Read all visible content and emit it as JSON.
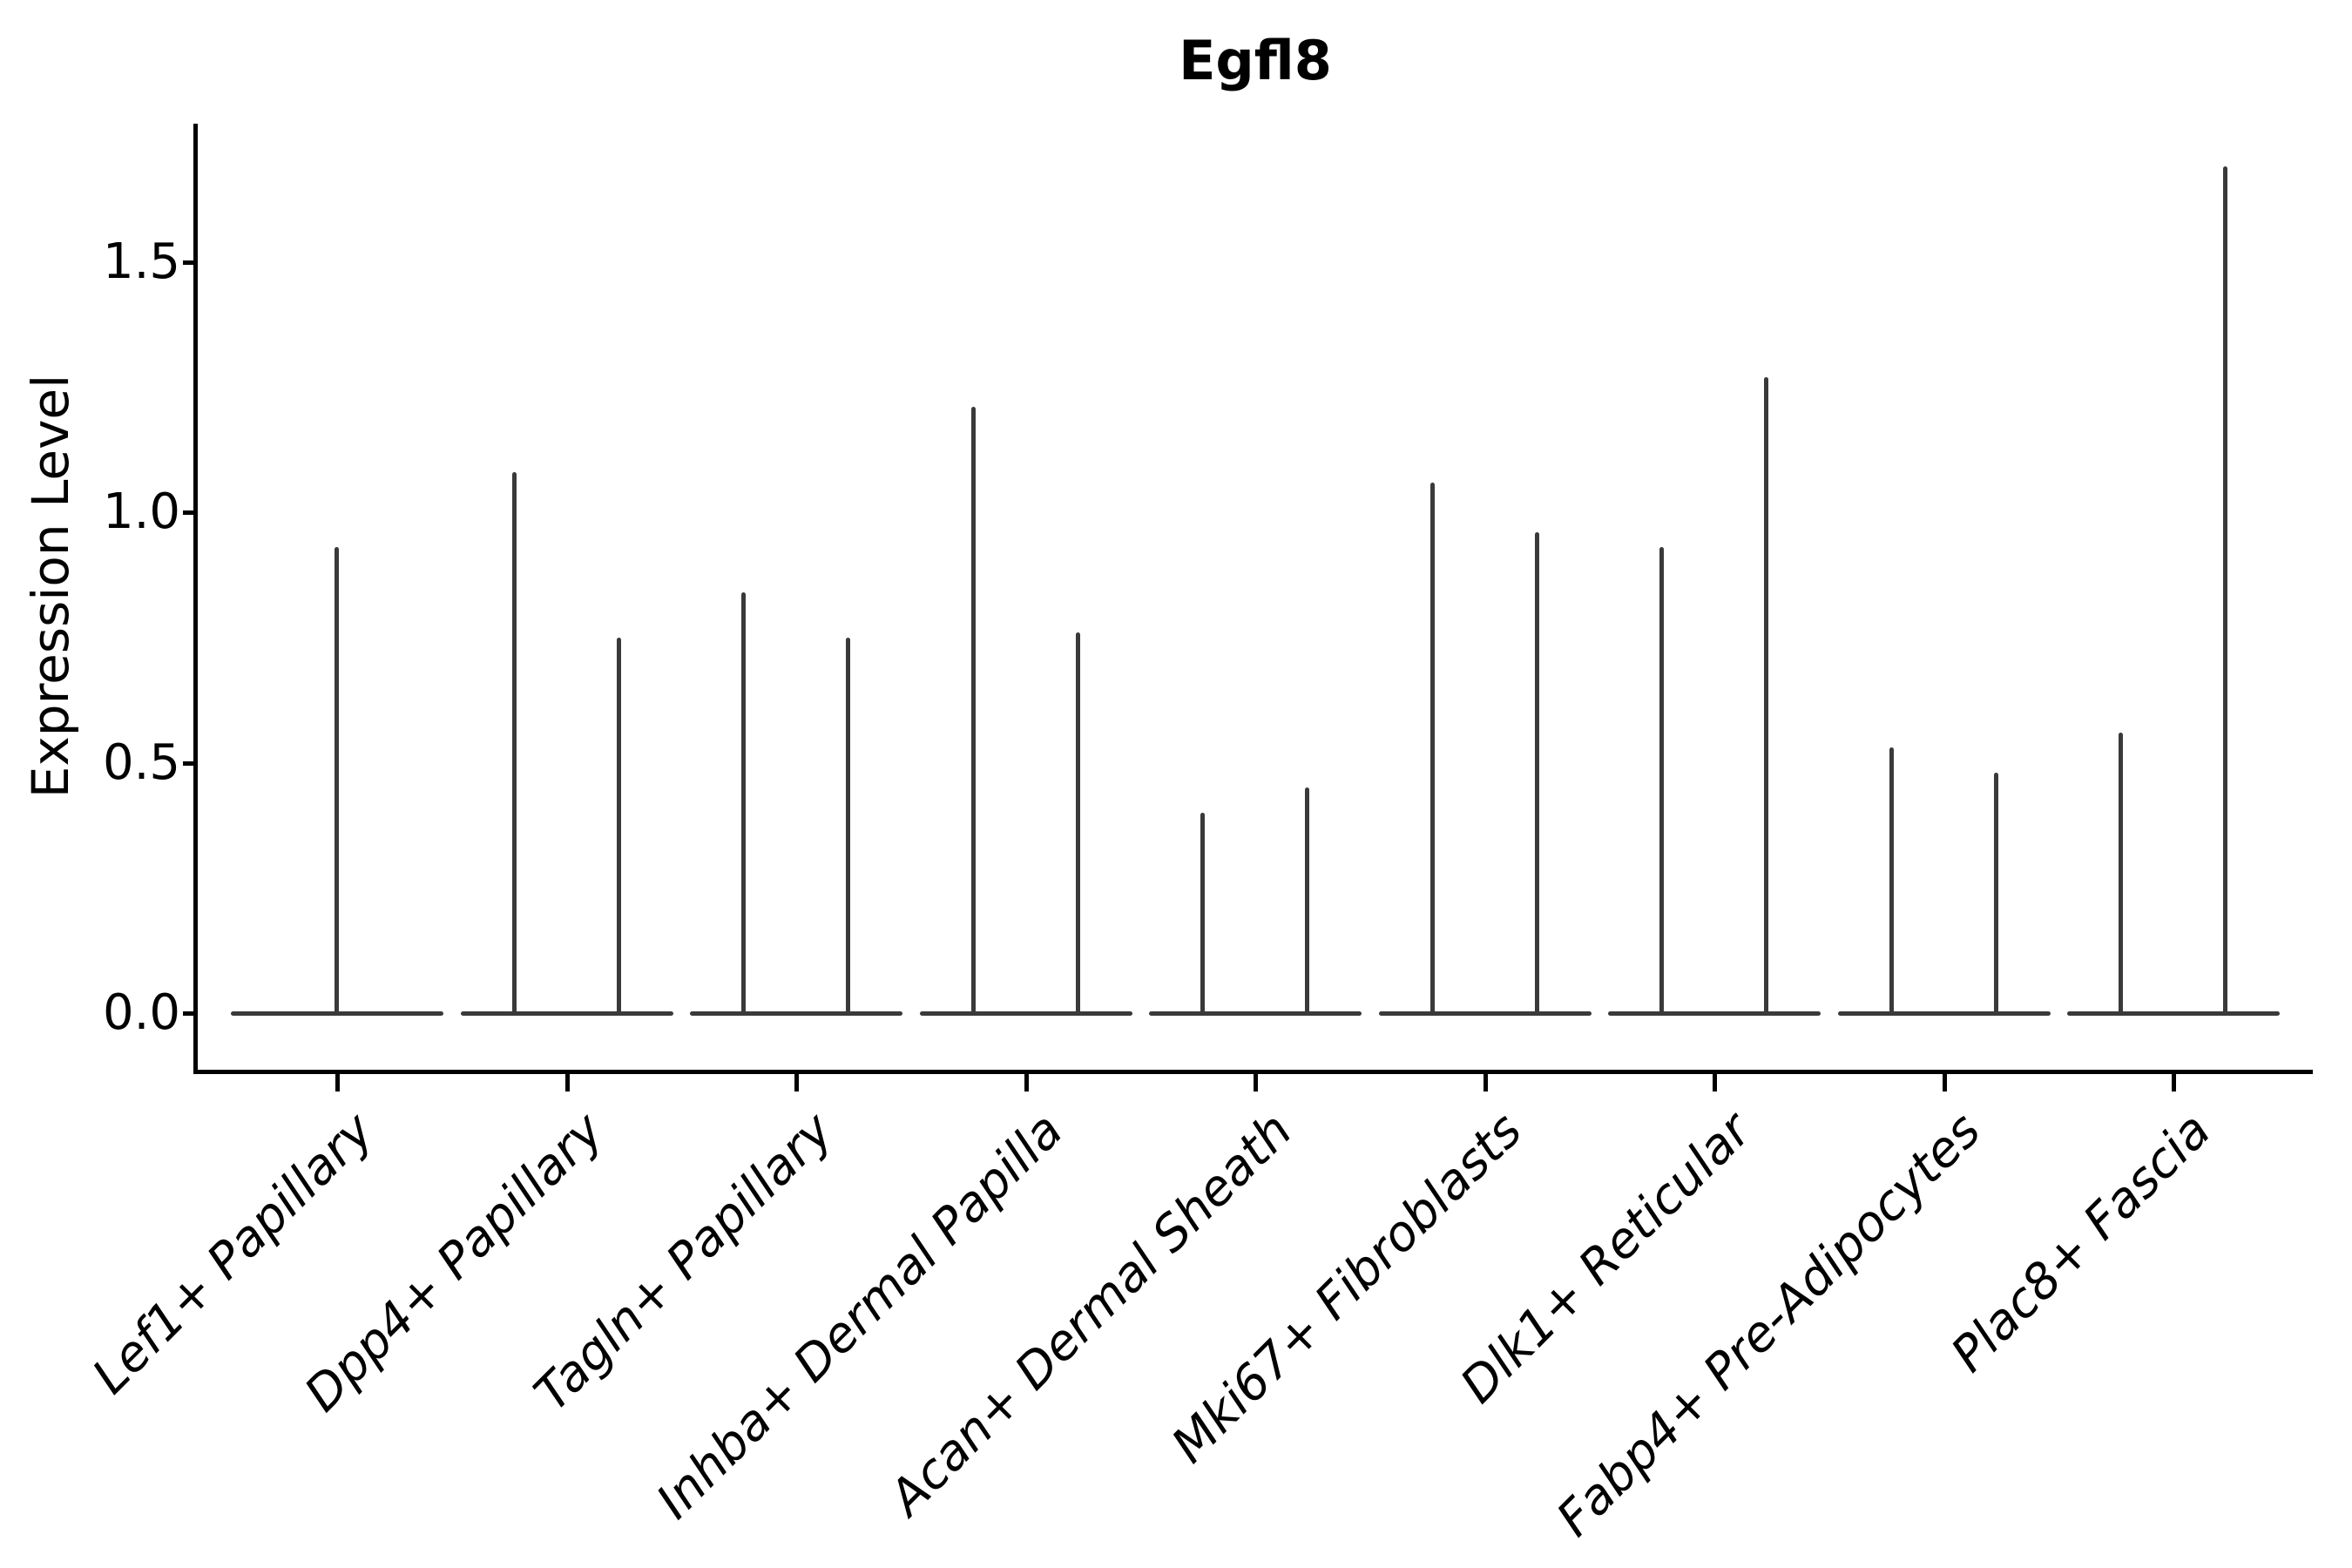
{
  "figure": {
    "background": "#ffffff",
    "colors": {
      "violin_line": "#3a3a3a",
      "axis_line": "#000000",
      "text": "#000000"
    }
  },
  "chart_data": {
    "type": "violin",
    "title": "Egfl8",
    "xlabel": "",
    "ylabel": "Expression Level",
    "grid": false,
    "legend": "none",
    "ylim": [
      -0.11,
      1.78
    ],
    "yticks": [
      {
        "label": "1.5",
        "value": 1.5
      },
      {
        "label": "1.0",
        "value": 1.0
      },
      {
        "label": "0.5",
        "value": 0.5
      },
      {
        "label": "0.0",
        "value": 0.0
      }
    ],
    "categories": [
      "Lef1+ Papillary",
      "Dpp4+ Papillary",
      "Tagln+ Papillary",
      "Inhba+ Dermal Papilla",
      "Acan+ Dermal Sheath",
      "Mki67+ Fibroblasts",
      "Dlk1+ Reticular",
      "Fabp4+ Pre-Adipocytes",
      "Plac8+ Fascia"
    ],
    "violins": [
      {
        "category": "Lef1+ Papillary",
        "baseline_value": 0.0,
        "spike_max_values": [
          0.93
        ]
      },
      {
        "category": "Dpp4+ Papillary",
        "baseline_value": 0.0,
        "spike_max_values": [
          1.08,
          0.75
        ]
      },
      {
        "category": "Tagln+ Papillary",
        "baseline_value": 0.0,
        "spike_max_values": [
          0.84,
          0.75
        ]
      },
      {
        "category": "Inhba+ Dermal Papilla",
        "baseline_value": 0.0,
        "spike_max_values": [
          1.21,
          0.76
        ]
      },
      {
        "category": "Acan+ Dermal Sheath",
        "baseline_value": 0.0,
        "spike_max_values": [
          0.4,
          0.45
        ]
      },
      {
        "category": "Mki67+ Fibroblasts",
        "baseline_value": 0.0,
        "spike_max_values": [
          1.06,
          0.96
        ]
      },
      {
        "category": "Dlk1+ Reticular",
        "baseline_value": 0.0,
        "spike_max_values": [
          0.93,
          1.27
        ]
      },
      {
        "category": "Fabp4+ Pre-Adipocytes",
        "baseline_value": 0.0,
        "spike_max_values": [
          0.53,
          0.48
        ]
      },
      {
        "category": "Plac8+ Fascia",
        "baseline_value": 0.0,
        "spike_max_values": [
          0.56,
          1.69
        ]
      }
    ]
  }
}
